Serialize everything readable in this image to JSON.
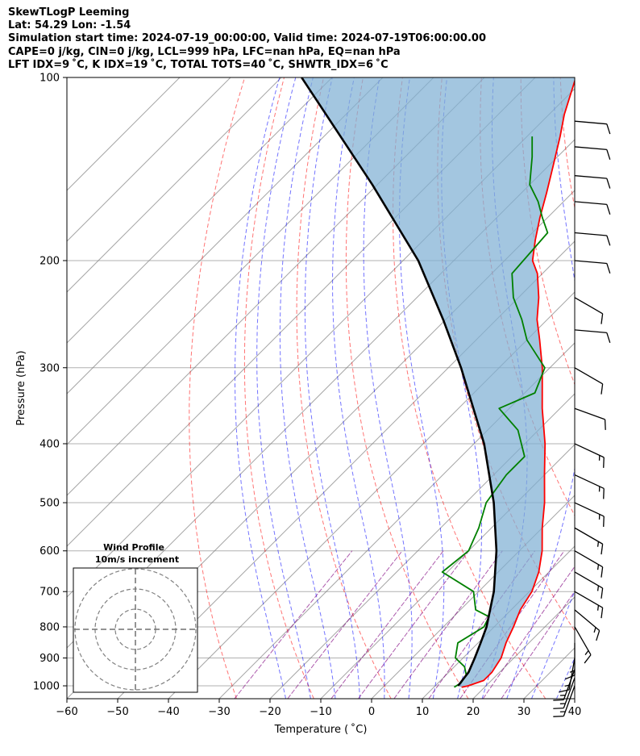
{
  "header": {
    "line1": "SkewTLogP Leeming",
    "line2": "Lat: 54.29   Lon: -1.54",
    "line3": "Simulation start time: 2024-07-19_00:00:00, Valid time: 2024-07-19T06:00:00.00",
    "line4": "CAPE=0 j/kg, CIN=0 j/kg, LCL=999 hPa, LFC=nan hPa, EQ=nan hPa",
    "line5": "LFT IDX=9 ˚C, K IDX=19 ˚C, TOTAL TOTS=40 ˚C, SHWTR_IDX=6 ˚C"
  },
  "colors": {
    "temperature": "#ff0000",
    "dewpoint": "#008000",
    "parcel": "#000000",
    "cape_fill": "#7fb0d4",
    "dry_adiabat": "#ff0000",
    "moist_adiabat": "#0000ff",
    "mixing_ratio": "#800080",
    "isotherm": "#808080"
  },
  "chart_data": {
    "type": "line",
    "xlabel": "Temperature ( ˚C)",
    "ylabel": "Pressure (hPa)",
    "xlim": [
      -60,
      40
    ],
    "ylim": [
      1050,
      100
    ],
    "y_scale": "log",
    "grid": true,
    "x_ticks": [
      -60,
      -50,
      -40,
      -30,
      -20,
      -10,
      0,
      10,
      20,
      30,
      40
    ],
    "y_ticks": [
      1000,
      900,
      800,
      700,
      600,
      500,
      400,
      300,
      200,
      100
    ],
    "series": [
      {
        "key": "temperature",
        "pressure": [
          1005,
          1000,
          980,
          950,
          900,
          850,
          800,
          750,
          700,
          650,
          600,
          550,
          500,
          450,
          400,
          350,
          300,
          270,
          250,
          230,
          210,
          200,
          185,
          170,
          155,
          140,
          125,
          115,
          100
        ],
        "temperature": [
          15.5,
          16.5,
          18.5,
          18.5,
          17.5,
          15.5,
          13.8,
          11.8,
          10.5,
          8.0,
          4.5,
          0.0,
          -4.5,
          -10.0,
          -16.0,
          -23.5,
          -31.5,
          -37.5,
          -42.0,
          -46.0,
          -51.0,
          -54.5,
          -58.0,
          -61.5,
          -65.0,
          -69.0,
          -73.5,
          -77.0,
          -82.0
        ]
      },
      {
        "key": "dewpoint",
        "pressure": [
          1005,
          990,
          960,
          930,
          900,
          850,
          800,
          770,
          750,
          700,
          650,
          600,
          550,
          500,
          450,
          420,
          380,
          350,
          330,
          300,
          270,
          250,
          230,
          210,
          180,
          170,
          160,
          150,
          135,
          125
        ],
        "temperature": [
          14.0,
          14.5,
          14.0,
          12.0,
          8.5,
          6.0,
          8.0,
          7.0,
          3.0,
          -1.0,
          -11.0,
          -10.0,
          -12.5,
          -16.0,
          -17.5,
          -17.5,
          -24.0,
          -32.0,
          -28.0,
          -31.0,
          -40.0,
          -45.0,
          -51.0,
          -56.0,
          -57.0,
          -61.0,
          -65.0,
          -70.0,
          -75.0,
          -79.0
        ]
      },
      {
        "key": "parcel",
        "pressure": [
          1000,
          950,
          900,
          850,
          800,
          700,
          600,
          500,
          400,
          300,
          250,
          200,
          150,
          100
        ],
        "temperature": [
          14.5,
          13.9,
          12.3,
          10.5,
          8.5,
          3.0,
          -4.5,
          -14.5,
          -28.0,
          -47.5,
          -60.5,
          -77.0,
          -101.0,
          -136.0
        ]
      }
    ],
    "wind_barbs": [
      {
        "p": 1000,
        "speed_kt": 15,
        "dir": 200
      },
      {
        "p": 970,
        "speed_kt": 15,
        "dir": 200
      },
      {
        "p": 940,
        "speed_kt": 15,
        "dir": 200
      },
      {
        "p": 900,
        "speed_kt": 15,
        "dir": 190
      },
      {
        "p": 850,
        "speed_kt": 15,
        "dir": 180
      },
      {
        "p": 800,
        "speed_kt": 15,
        "dir": 150
      },
      {
        "p": 750,
        "speed_kt": 15,
        "dir": 130
      },
      {
        "p": 700,
        "speed_kt": 15,
        "dir": 120
      },
      {
        "p": 650,
        "speed_kt": 15,
        "dir": 120
      },
      {
        "p": 600,
        "speed_kt": 15,
        "dir": 120
      },
      {
        "p": 550,
        "speed_kt": 15,
        "dir": 120
      },
      {
        "p": 500,
        "speed_kt": 15,
        "dir": 115
      },
      {
        "p": 450,
        "speed_kt": 15,
        "dir": 115
      },
      {
        "p": 400,
        "speed_kt": 15,
        "dir": 115
      },
      {
        "p": 350,
        "speed_kt": 10,
        "dir": 110
      },
      {
        "p": 300,
        "speed_kt": 10,
        "dir": 120
      },
      {
        "p": 260,
        "speed_kt": 10,
        "dir": 95
      },
      {
        "p": 230,
        "speed_kt": 10,
        "dir": 120
      },
      {
        "p": 200,
        "speed_kt": 10,
        "dir": 95
      },
      {
        "p": 180,
        "speed_kt": 10,
        "dir": 95
      },
      {
        "p": 160,
        "speed_kt": 10,
        "dir": 95
      },
      {
        "p": 145,
        "speed_kt": 10,
        "dir": 95
      },
      {
        "p": 130,
        "speed_kt": 10,
        "dir": 95
      },
      {
        "p": 118,
        "speed_kt": 10,
        "dir": 95
      }
    ]
  },
  "hodograph": {
    "title": "Wind Profile",
    "subtitle": "10m/s increment"
  }
}
